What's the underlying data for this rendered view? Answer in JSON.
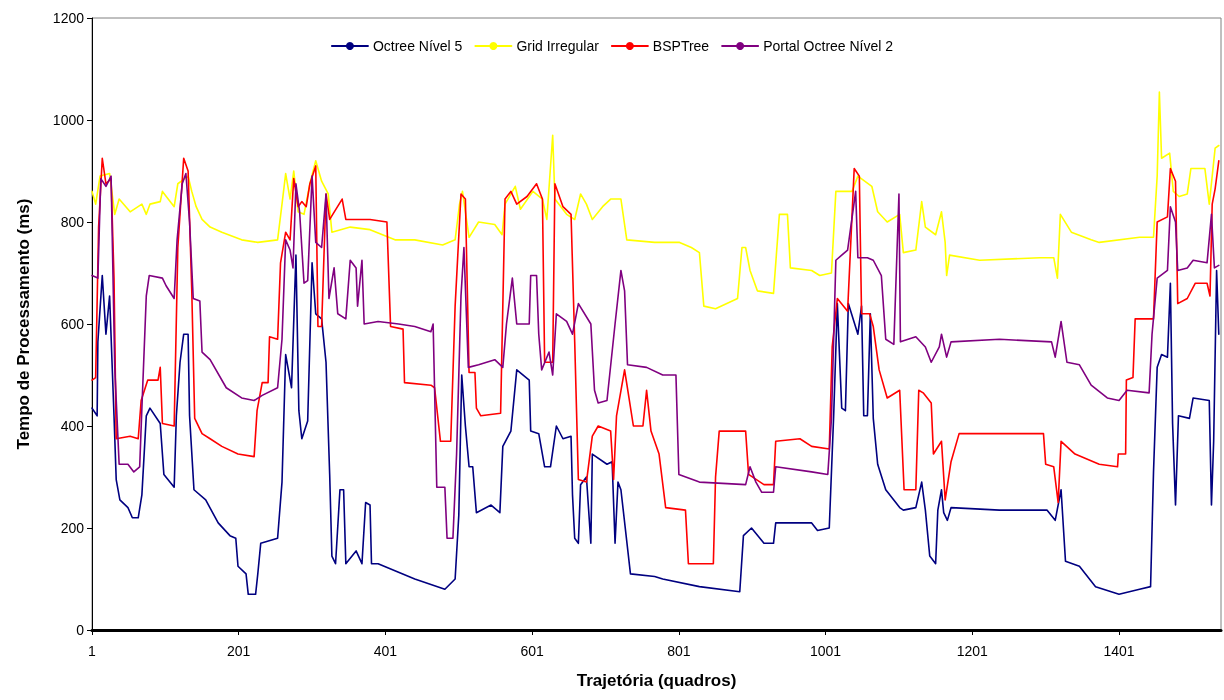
{
  "chart_data": {
    "type": "line",
    "xlabel": "Trajetória (quadros)",
    "ylabel": "Tempo de Processamento (ms)",
    "xlim": [
      1,
      1540
    ],
    "xticks": [
      1,
      201,
      401,
      601,
      801,
      1001,
      1201,
      1401
    ],
    "ylim": [
      0,
      1200
    ],
    "yticks": [
      0,
      200,
      400,
      600,
      800,
      1000,
      1200
    ],
    "grid": false,
    "legend": "top",
    "marker": "none",
    "line_style": "solid",
    "series": [
      {
        "name": "Octree Nível 5",
        "color": "#000080",
        "x": [
          1,
          8,
          9,
          15,
          20,
          25,
          31,
          34,
          39,
          50,
          56,
          64,
          69,
          75,
          80,
          94,
          99,
          113,
          116,
          121,
          126,
          132,
          134,
          140,
          156,
          173,
          189,
          197,
          200,
          211,
          214,
          224,
          227,
          231,
          254,
          260,
          265,
          273,
          279,
          283,
          287,
          295,
          301,
          306,
          314,
          320,
          325,
          328,
          333,
          339,
          344,
          347,
          361,
          369,
          374,
          380,
          382,
          391,
          441,
          482,
          496,
          501,
          505,
          510,
          515,
          520,
          525,
          545,
          557,
          561,
          572,
          580,
          597,
          599,
          610,
          618,
          626,
          634,
          643,
          654,
          656,
          659,
          664,
          667,
          675,
          681,
          683,
          703,
          710,
          714,
          718,
          722,
          735,
          768,
          779,
          829,
          884,
          889,
          900,
          917,
          930,
          933,
          982,
          990,
          1006,
          1012,
          1017,
          1023,
          1028,
          1032,
          1045,
          1050,
          1053,
          1058,
          1062,
          1066,
          1072,
          1083,
          1102,
          1107,
          1124,
          1132,
          1137,
          1143,
          1151,
          1154,
          1159,
          1162,
          1167,
          1172,
          1238,
          1303,
          1314,
          1322,
          1328,
          1347,
          1369,
          1401,
          1429,
          1444,
          1448,
          1453,
          1459,
          1467,
          1471,
          1474,
          1478,
          1482,
          1497,
          1502,
          1524,
          1527,
          1530,
          1534,
          1537
        ],
        "values": [
          435,
          420,
          565,
          695,
          580,
          655,
          420,
          295,
          255,
          240,
          220,
          220,
          265,
          420,
          435,
          405,
          305,
          280,
          420,
          525,
          580,
          580,
          420,
          275,
          255,
          210,
          185,
          180,
          125,
          110,
          70,
          70,
          110,
          170,
          180,
          290,
          540,
          475,
          735,
          430,
          375,
          410,
          720,
          620,
          610,
          525,
          305,
          145,
          130,
          275,
          275,
          130,
          155,
          130,
          250,
          245,
          130,
          130,
          100,
          80,
          100,
          225,
          500,
          400,
          320,
          320,
          230,
          245,
          230,
          360,
          390,
          510,
          490,
          390,
          385,
          320,
          320,
          400,
          375,
          380,
          265,
          180,
          170,
          285,
          300,
          170,
          345,
          325,
          330,
          170,
          290,
          275,
          110,
          105,
          100,
          85,
          75,
          185,
          200,
          170,
          170,
          210,
          210,
          195,
          200,
          420,
          640,
          435,
          430,
          640,
          580,
          635,
          420,
          420,
          620,
          415,
          325,
          275,
          240,
          235,
          240,
          290,
          235,
          145,
          130,
          235,
          275,
          230,
          215,
          240,
          235,
          235,
          215,
          275,
          135,
          125,
          85,
          70,
          80,
          85,
          310,
          515,
          540,
          535,
          680,
          405,
          245,
          420,
          415,
          455,
          450,
          245,
          370,
          705,
          580
        ]
      },
      {
        "name": "Grid Irregular",
        "color": "#ffff00",
        "x": [
          1,
          6,
          12,
          25,
          32,
          38,
          53,
          69,
          75,
          80,
          94,
          97,
          113,
          118,
          132,
          137,
          143,
          151,
          162,
          178,
          205,
          227,
          254,
          260,
          265,
          271,
          276,
          282,
          290,
          298,
          306,
          314,
          323,
          328,
          353,
          380,
          414,
          441,
          479,
          496,
          502,
          506,
          515,
          528,
          550,
          560,
          564,
          578,
          585,
          602,
          615,
          621,
          629,
          632,
          648,
          659,
          667,
          675,
          683,
          697,
          708,
          722,
          730,
          768,
          802,
          818,
          829,
          835,
          851,
          881,
          887,
          892,
          898,
          908,
          930,
          938,
          949,
          953,
          982,
          993,
          1009,
          1015,
          1037,
          1045,
          1064,
          1072,
          1085,
          1102,
          1107,
          1124,
          1132,
          1137,
          1151,
          1159,
          1164,
          1166,
          1170,
          1211,
          1293,
          1312,
          1317,
          1321,
          1336,
          1363,
          1374,
          1429,
          1448,
          1453,
          1456,
          1459,
          1470,
          1475,
          1483,
          1494,
          1499,
          1518,
          1524,
          1532,
          1537
        ],
        "values": [
          860,
          835,
          890,
          895,
          815,
          845,
          820,
          835,
          815,
          835,
          840,
          860,
          830,
          875,
          890,
          860,
          830,
          805,
          790,
          780,
          765,
          760,
          765,
          835,
          895,
          845,
          900,
          820,
          815,
          875,
          920,
          880,
          855,
          780,
          790,
          785,
          765,
          765,
          755,
          765,
          835,
          860,
          770,
          800,
          795,
          775,
          835,
          870,
          825,
          860,
          845,
          805,
          970,
          845,
          815,
          805,
          855,
          835,
          805,
          830,
          845,
          845,
          765,
          760,
          760,
          750,
          740,
          635,
          630,
          650,
          750,
          750,
          705,
          665,
          660,
          815,
          815,
          710,
          705,
          695,
          700,
          860,
          860,
          890,
          870,
          820,
          800,
          815,
          740,
          745,
          840,
          790,
          775,
          820,
          760,
          695,
          735,
          725,
          730,
          730,
          690,
          815,
          780,
          765,
          760,
          770,
          770,
          890,
          1055,
          925,
          935,
          860,
          850,
          855,
          905,
          905,
          835,
          945,
          950
        ]
      },
      {
        "name": "BSPTree",
        "color": "#ff0000",
        "x": [
          1,
          6,
          10,
          15,
          20,
          27,
          31,
          34,
          53,
          64,
          68,
          77,
          91,
          94,
          97,
          113,
          118,
          126,
          132,
          137,
          141,
          151,
          162,
          178,
          200,
          222,
          226,
          233,
          241,
          243,
          254,
          258,
          265,
          271,
          276,
          282,
          287,
          293,
          298,
          306,
          309,
          314,
          320,
          325,
          342,
          347,
          380,
          403,
          408,
          425,
          427,
          463,
          468,
          476,
          490,
          496,
          504,
          510,
          515,
          523,
          525,
          531,
          558,
          564,
          572,
          580,
          594,
          607,
          615,
          618,
          629,
          632,
          643,
          654,
          659,
          664,
          675,
          683,
          691,
          708,
          712,
          716,
          727,
          733,
          739,
          752,
          757,
          763,
          774,
          783,
          810,
          814,
          848,
          851,
          856,
          892,
          896,
          917,
          930,
          933,
          966,
          982,
          1006,
          1010,
          1017,
          1031,
          1040,
          1047,
          1050,
          1061,
          1066,
          1074,
          1085,
          1102,
          1108,
          1124,
          1128,
          1134,
          1145,
          1148,
          1159,
          1164,
          1172,
          1183,
          1238,
          1298,
          1301,
          1312,
          1318,
          1322,
          1341,
          1374,
          1399,
          1400,
          1410,
          1411,
          1420,
          1423,
          1448,
          1453,
          1467,
          1471,
          1478,
          1481,
          1494,
          1505,
          1521,
          1525,
          1528,
          1532,
          1537
        ],
        "values": [
          490,
          495,
          790,
          925,
          875,
          885,
          690,
          375,
          380,
          375,
          450,
          490,
          490,
          515,
          405,
          400,
          750,
          925,
          900,
          665,
          415,
          385,
          375,
          360,
          345,
          340,
          430,
          485,
          485,
          575,
          570,
          720,
          780,
          765,
          885,
          830,
          840,
          830,
          875,
          910,
          595,
          595,
          855,
          805,
          845,
          805,
          805,
          800,
          595,
          590,
          485,
          480,
          475,
          370,
          370,
          635,
          855,
          845,
          505,
          505,
          435,
          420,
          425,
          845,
          860,
          835,
          850,
          875,
          845,
          525,
          525,
          875,
          830,
          815,
          565,
          295,
          290,
          380,
          400,
          390,
          295,
          420,
          510,
          455,
          400,
          400,
          470,
          390,
          345,
          240,
          235,
          130,
          130,
          300,
          390,
          390,
          305,
          285,
          285,
          370,
          375,
          360,
          355,
          555,
          650,
          625,
          905,
          890,
          620,
          620,
          595,
          510,
          455,
          470,
          275,
          275,
          470,
          465,
          445,
          345,
          370,
          255,
          330,
          385,
          385,
          385,
          325,
          320,
          250,
          370,
          345,
          325,
          320,
          345,
          345,
          490,
          495,
          610,
          610,
          800,
          810,
          905,
          880,
          640,
          650,
          680,
          680,
          655,
          835,
          865,
          920
        ]
      },
      {
        "name": "Portal Octree Nível 2",
        "color": "#800080",
        "x": [
          1,
          9,
          13,
          20,
          27,
          32,
          38,
          50,
          58,
          66,
          69,
          75,
          79,
          97,
          102,
          113,
          117,
          124,
          129,
          134,
          139,
          148,
          151,
          162,
          184,
          205,
          222,
          233,
          254,
          260,
          265,
          271,
          275,
          279,
          284,
          290,
          295,
          301,
          306,
          314,
          320,
          324,
          331,
          336,
          347,
          353,
          361,
          363,
          369,
          372,
          391,
          419,
          441,
          463,
          466,
          471,
          482,
          485,
          493,
          498,
          504,
          508,
          514,
          528,
          550,
          561,
          566,
          574,
          580,
          597,
          599,
          607,
          610,
          614,
          624,
          629,
          634,
          648,
          656,
          664,
          681,
          686,
          691,
          703,
          714,
          722,
          727,
          731,
          757,
          779,
          797,
          801,
          829,
          892,
          898,
          906,
          914,
          930,
          933,
          982,
          1004,
          1009,
          1015,
          1023,
          1031,
          1042,
          1045,
          1058,
          1066,
          1077,
          1083,
          1094,
          1101,
          1103,
          1124,
          1137,
          1145,
          1156,
          1159,
          1166,
          1172,
          1238,
          1309,
          1314,
          1322,
          1330,
          1347,
          1363,
          1385,
          1401,
          1412,
          1442,
          1446,
          1453,
          1467,
          1471,
          1478,
          1481,
          1494,
          1502,
          1521,
          1527,
          1531,
          1537
        ],
        "values": [
          695,
          690,
          885,
          870,
          890,
          515,
          325,
          325,
          310,
          320,
          435,
          655,
          695,
          690,
          675,
          650,
          765,
          875,
          895,
          800,
          650,
          645,
          545,
          530,
          475,
          455,
          450,
          460,
          475,
          570,
          765,
          745,
          710,
          875,
          820,
          680,
          685,
          890,
          760,
          750,
          855,
          650,
          710,
          620,
          610,
          725,
          710,
          635,
          725,
          600,
          605,
          600,
          595,
          585,
          600,
          280,
          280,
          180,
          180,
          345,
          655,
          750,
          515,
          520,
          530,
          515,
          600,
          690,
          600,
          600,
          695,
          695,
          580,
          510,
          545,
          500,
          620,
          605,
          580,
          640,
          600,
          470,
          445,
          450,
          600,
          705,
          665,
          520,
          515,
          500,
          500,
          305,
          290,
          285,
          320,
          290,
          270,
          270,
          320,
          310,
          305,
          415,
          725,
          735,
          745,
          860,
          730,
          730,
          725,
          695,
          570,
          560,
          855,
          565,
          575,
          555,
          525,
          555,
          580,
          535,
          565,
          570,
          565,
          535,
          605,
          525,
          520,
          480,
          455,
          450,
          470,
          465,
          580,
          690,
          705,
          830,
          800,
          705,
          710,
          725,
          720,
          815,
          710,
          715
        ]
      }
    ]
  }
}
